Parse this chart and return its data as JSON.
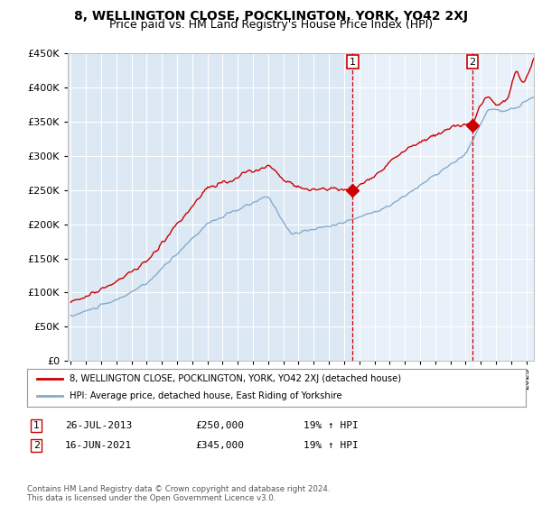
{
  "title": "8, WELLINGTON CLOSE, POCKLINGTON, YORK, YO42 2XJ",
  "subtitle": "Price paid vs. HM Land Registry's House Price Index (HPI)",
  "ylim": [
    0,
    450000
  ],
  "yticks": [
    0,
    50000,
    100000,
    150000,
    200000,
    250000,
    300000,
    350000,
    400000,
    450000
  ],
  "xlim_start": 1994.8,
  "xlim_end": 2025.5,
  "background_color": "#ffffff",
  "plot_bg_color": "#dce9f5",
  "fill_bg_color": "#e8f0fa",
  "grid_color": "#ffffff",
  "red_line_color": "#cc0000",
  "blue_line_color": "#88aacc",
  "vline_color": "#cc0000",
  "marker1_x": 2013.57,
  "marker1_y": 250000,
  "marker2_x": 2021.46,
  "marker2_y": 345000,
  "legend_label_red": "8, WELLINGTON CLOSE, POCKLINGTON, YORK, YO42 2XJ (detached house)",
  "legend_label_blue": "HPI: Average price, detached house, East Riding of Yorkshire",
  "table_row1": [
    "1",
    "26-JUL-2013",
    "£250,000",
    "19% ↑ HPI"
  ],
  "table_row2": [
    "2",
    "16-JUN-2021",
    "£345,000",
    "19% ↑ HPI"
  ],
  "copyright_text": "Contains HM Land Registry data © Crown copyright and database right 2024.\nThis data is licensed under the Open Government Licence v3.0.",
  "title_fontsize": 10,
  "subtitle_fontsize": 9
}
